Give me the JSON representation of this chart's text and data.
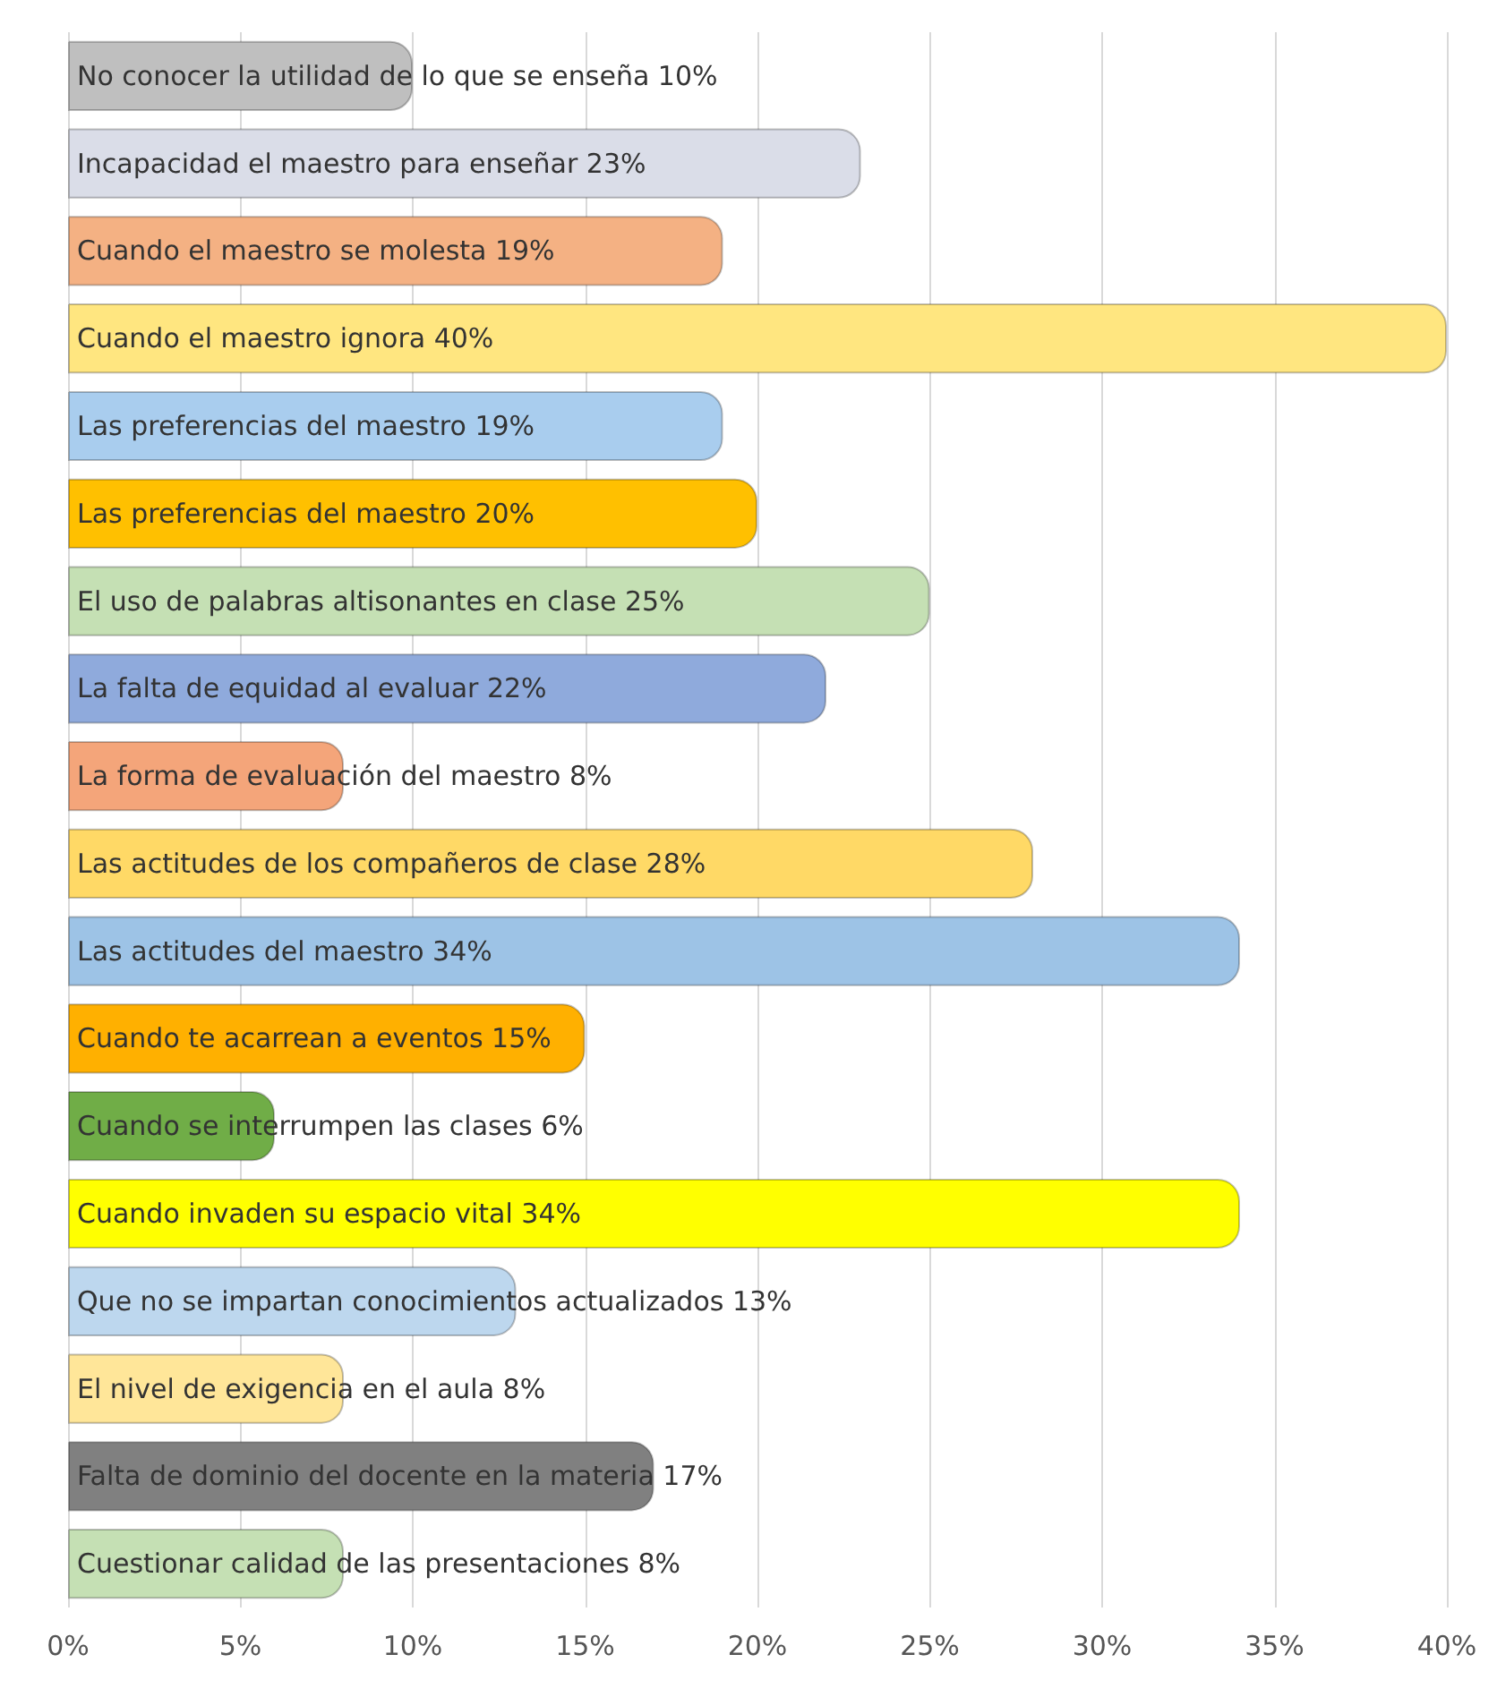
{
  "chart_data": {
    "type": "bar",
    "orientation": "horizontal",
    "categories": [
      "No conocer la utilidad de lo que se enseña",
      "Incapacidad el maestro para enseñar",
      "Cuando el maestro se molesta",
      "Cuando el maestro ignora",
      "Las preferencias del maestro",
      "Las preferencias del maestro",
      "El uso de palabras altisonantes en clase",
      "La falta de equidad al evaluar",
      "La forma de evaluación del maestro",
      "Las actitudes de los compañeros de clase",
      "Las actitudes del maestro",
      "Cuando te acarrean a eventos",
      "Cuando se interrumpen las clases",
      "Cuando invaden su espacio vital",
      "Que no se impartan conocimientos actualizados",
      "El nivel de exigencia en el aula",
      "Falta de dominio del docente en la materia",
      "Cuestionar calidad de las presentaciones"
    ],
    "values": [
      10,
      23,
      19,
      40,
      19,
      20,
      25,
      22,
      8,
      28,
      34,
      15,
      6,
      34,
      13,
      8,
      17,
      8
    ],
    "value_labels": [
      "10%",
      "23%",
      "19%",
      "40%",
      "19%",
      "20%",
      "25%",
      "22%",
      "8%",
      "28%",
      "34%",
      "15%",
      "6%",
      "34%",
      "13%",
      "8%",
      "17%",
      "8%"
    ],
    "colors": [
      "#bfbfbf",
      "#dadde8",
      "#f4b183",
      "#ffe680",
      "#a9cdee",
      "#ffc000",
      "#c5e0b4",
      "#8faadc",
      "#f4a57a",
      "#ffd966",
      "#9dc3e6",
      "#ffb000",
      "#70ad47",
      "#ffff00",
      "#bdd7ee",
      "#ffe699",
      "#808080",
      "#c5e0b4"
    ],
    "xlim": [
      0,
      40
    ],
    "xticks": [
      {
        "value": 0,
        "label": "0%"
      },
      {
        "value": 5,
        "label": "5%"
      },
      {
        "value": 10,
        "label": "10%"
      },
      {
        "value": 15,
        "label": "15%"
      },
      {
        "value": 20,
        "label": "20%"
      },
      {
        "value": 25,
        "label": "25%"
      },
      {
        "value": 30,
        "label": "30%"
      },
      {
        "value": 35,
        "label": "35%"
      },
      {
        "value": 40,
        "label": "40%"
      }
    ],
    "grid": "x",
    "tick_labels": "x"
  }
}
